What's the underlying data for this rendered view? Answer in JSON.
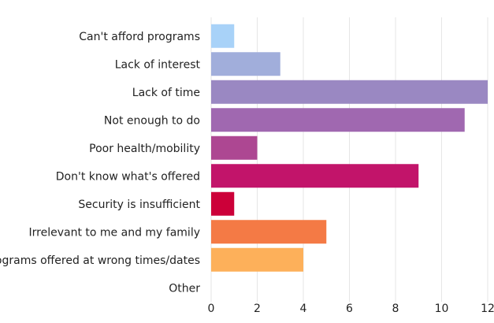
{
  "chart_data": {
    "type": "bar",
    "orientation": "horizontal",
    "categories": [
      "Can't afford programs",
      "Lack of interest",
      "Lack of time",
      "Not enough to do",
      "Poor health/mobility",
      "Don't know what's offered",
      "Security is insufficient",
      "Irrelevant to me and my family",
      "Programs offered at wrong times/dates",
      "Other"
    ],
    "values": [
      1,
      3,
      12,
      11,
      2,
      9,
      1,
      5,
      4,
      0
    ],
    "colors": [
      "#a8d2f8",
      "#a1aedb",
      "#9a88c2",
      "#a068b0",
      "#ad4792",
      "#c2146a",
      "#cc0039",
      "#f47a45",
      "#fdb05a",
      "#cccccc"
    ],
    "xlim": [
      0,
      12
    ],
    "xticks": [
      0,
      2,
      4,
      6,
      8,
      10,
      12
    ],
    "grid": true,
    "title": "",
    "xlabel": "",
    "ylabel": ""
  }
}
